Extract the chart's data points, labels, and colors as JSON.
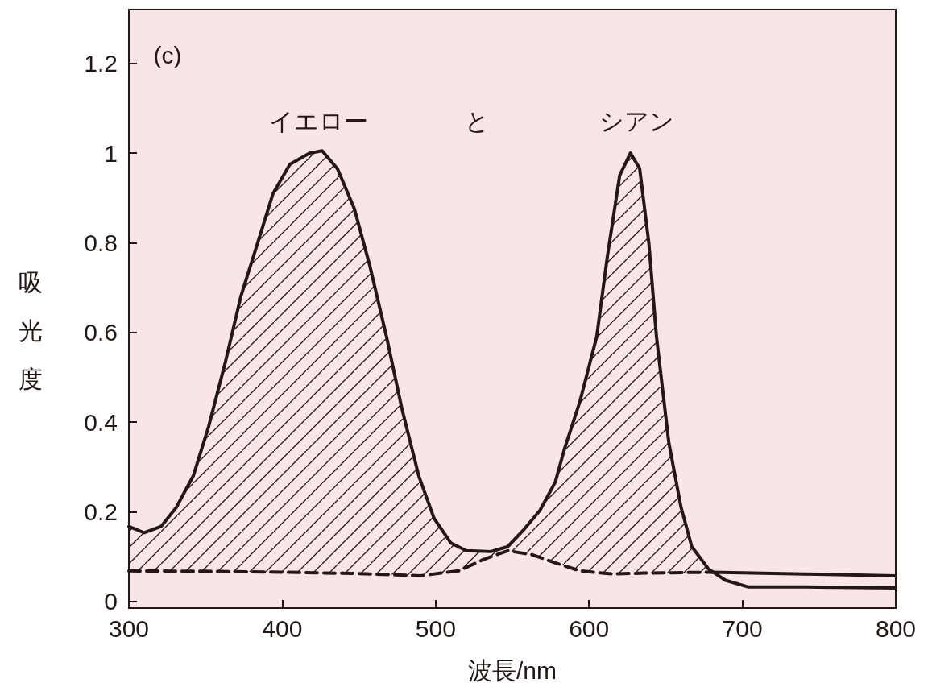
{
  "chart_data": {
    "type": "line",
    "xlabel": "波長/nm",
    "ylabel": "吸光度",
    "annotations": [
      "(c)",
      "イエロー",
      "と",
      "シアン"
    ],
    "xlim": [
      300,
      800
    ],
    "xticks": [
      300,
      400,
      500,
      600,
      700,
      800
    ],
    "ylim": [
      -0.015,
      1.32
    ],
    "yticks": [
      0,
      0.2,
      0.4,
      0.6,
      0.8,
      1,
      1.2
    ],
    "grid": false,
    "marker": "none",
    "series": [
      {
        "color": "#231815",
        "line_style": "solid",
        "x": [
          300,
          310,
          321,
          331,
          342,
          352,
          363,
          373,
          384,
          394,
          405,
          418,
          426,
          436,
          447,
          457,
          468,
          478,
          489,
          499,
          510,
          520,
          536,
          547,
          557,
          568,
          578,
          584,
          594,
          605,
          612,
          620,
          627,
          633,
          639,
          644,
          652,
          660,
          667,
          678,
          689,
          704,
          741,
          800
        ],
        "values": [
          0.167,
          0.153,
          0.167,
          0.21,
          0.28,
          0.39,
          0.535,
          0.68,
          0.8,
          0.91,
          0.975,
          1.0,
          1.005,
          0.965,
          0.876,
          0.75,
          0.59,
          0.43,
          0.28,
          0.185,
          0.13,
          0.113,
          0.111,
          0.122,
          0.158,
          0.203,
          0.266,
          0.34,
          0.445,
          0.59,
          0.77,
          0.95,
          1.0,
          0.966,
          0.8,
          0.59,
          0.355,
          0.21,
          0.122,
          0.072,
          0.047,
          0.032,
          0.032,
          0.03
        ],
        "lower": [
          0.068,
          0.068,
          0.068,
          0.067,
          0.067,
          0.067,
          0.066,
          0.066,
          0.066,
          0.065,
          0.065,
          0.064,
          0.063,
          0.063,
          0.062,
          0.061,
          0.06,
          0.059,
          0.057,
          0.061,
          0.066,
          0.076,
          0.099,
          0.113,
          0.107,
          0.098,
          0.086,
          0.079,
          0.068,
          0.064,
          0.062,
          0.061,
          0.062,
          0.063,
          0.063,
          0.063,
          0.064,
          0.064,
          0.064,
          0.065,
          null,
          null,
          null,
          null
        ],
        "upper": [
          0.167,
          0.153,
          0.167,
          0.21,
          0.28,
          0.39,
          0.535,
          0.68,
          0.8,
          0.91,
          0.975,
          1.0,
          1.005,
          0.965,
          0.876,
          0.75,
          0.59,
          0.43,
          0.28,
          0.185,
          0.13,
          0.113,
          0.111,
          0.122,
          0.158,
          0.203,
          0.266,
          0.34,
          0.445,
          0.59,
          0.77,
          0.95,
          1.0,
          0.966,
          0.8,
          0.59,
          0.355,
          0.21,
          0.122,
          0.072,
          null,
          null,
          null,
          null
        ]
      },
      {
        "type": "line",
        "color": "#231815",
        "line_style": "dashed",
        "x": [
          300,
          350,
          400,
          450,
          490,
          515,
          531,
          547,
          563,
          578,
          594,
          615,
          636,
          680
        ],
        "values": [
          0.068,
          0.067,
          0.065,
          0.062,
          0.057,
          0.068,
          0.093,
          0.113,
          0.104,
          0.086,
          0.068,
          0.061,
          0.063,
          0.065
        ]
      },
      {
        "color": "#231815",
        "line_style": "solid",
        "x": [
          680,
          740,
          800
        ],
        "values": [
          0.065,
          0.061,
          0.057
        ]
      }
    ]
  }
}
